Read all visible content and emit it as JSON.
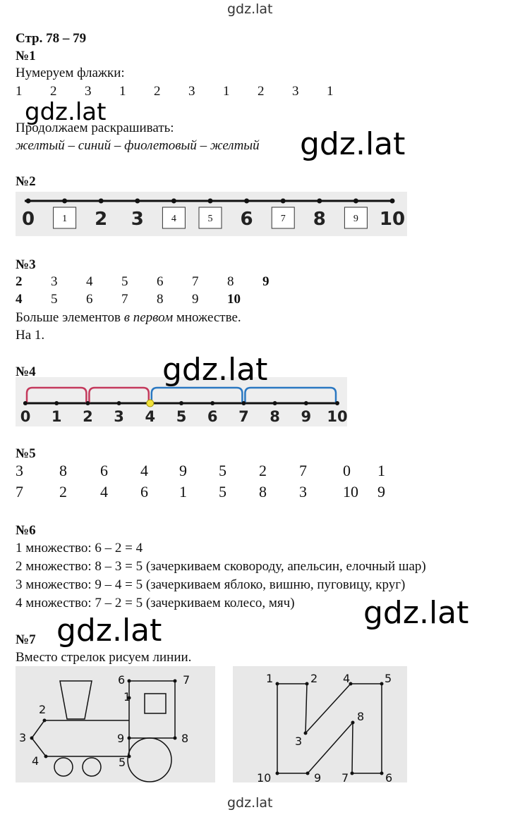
{
  "site": "gdz.lat",
  "header": {
    "pages": "Стр. 78 – 79"
  },
  "task1": {
    "number": "№1",
    "intro": "Нумеруем флажки:",
    "flags": [
      1,
      2,
      3,
      1,
      2,
      3,
      1,
      2,
      3,
      1
    ],
    "continue": "Продолжаем раскрашивать:",
    "colors": "желтый – синий – фиолетовый – желтый"
  },
  "task2": {
    "number": "№2",
    "printed": [
      0,
      2,
      3,
      6,
      8,
      10
    ],
    "written": [
      1,
      4,
      5,
      7,
      9
    ]
  },
  "task3": {
    "number": "№3",
    "rows": [
      [
        2,
        3,
        4,
        5,
        6,
        7,
        8,
        9
      ],
      [
        4,
        5,
        6,
        7,
        8,
        9,
        10
      ]
    ],
    "answer": [
      "Больше элементов ",
      "в первом",
      " множестве."
    ],
    "difference": "На 1."
  },
  "task4": {
    "number": "№4",
    "ticks": [
      0,
      1,
      2,
      3,
      4,
      5,
      6,
      7,
      8,
      9,
      10
    ]
  },
  "task5": {
    "number": "№5",
    "rows": [
      [
        3,
        8,
        6,
        4,
        9,
        5,
        2,
        7,
        0,
        1
      ],
      [
        7,
        2,
        4,
        6,
        1,
        5,
        8,
        3,
        10,
        9
      ]
    ]
  },
  "task6": {
    "number": "№6",
    "lines": [
      "1 множество: 6 – 2 = 4",
      "2 множество: 8 – 3 = 5 (зачеркиваем сковороду, апельсин, елочный шар)",
      "3 множество: 9 – 4 = 5 (зачеркиваем яблоко, вишню, пуговицу, круг)",
      "4 множество: 7 – 2 = 5 (зачеркиваем колесо, мяч)"
    ]
  },
  "task7": {
    "number": "№7",
    "instruction": "Вместо стрелок рисуем линии.",
    "train": [
      "1",
      "2",
      "3",
      "4",
      "5",
      "6",
      "7",
      "8",
      "9"
    ],
    "letter": [
      "1",
      "2",
      "3",
      "4",
      "5",
      "6",
      "7",
      "8",
      "9",
      "10"
    ]
  }
}
